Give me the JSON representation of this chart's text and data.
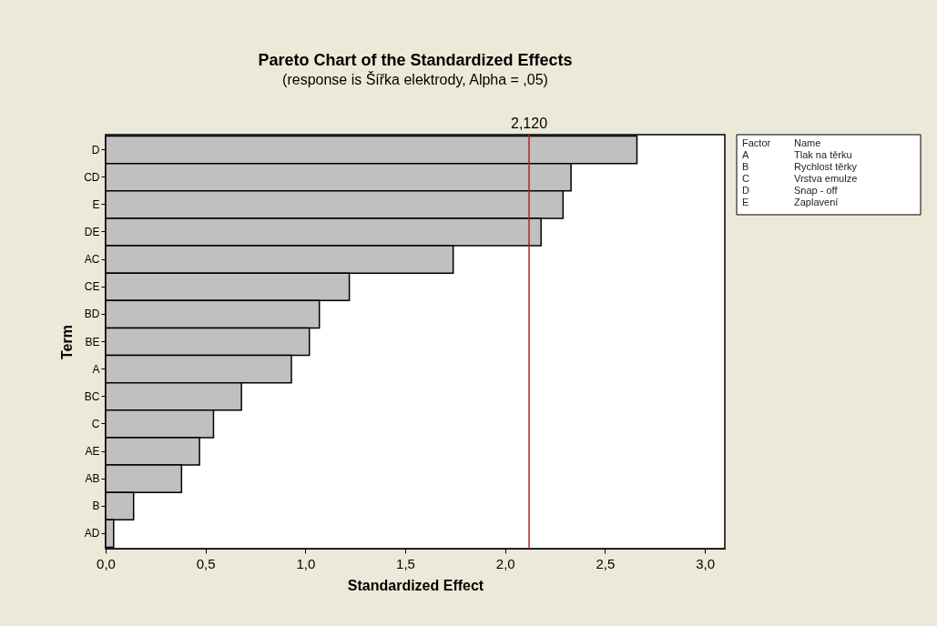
{
  "chart_data": {
    "type": "bar",
    "orientation": "horizontal",
    "title": "Pareto Chart of the Standardized Effects",
    "subtitle": "(response is Šířka elektrody, Alpha = ,05)",
    "xlabel": "Standardized Effect",
    "ylabel": "Term",
    "categories": [
      "D",
      "CD",
      "E",
      "DE",
      "AC",
      "CE",
      "BD",
      "BE",
      "A",
      "BC",
      "C",
      "AE",
      "AB",
      "B",
      "AD"
    ],
    "values": [
      2.66,
      2.33,
      2.29,
      2.18,
      1.74,
      1.22,
      1.07,
      1.02,
      0.93,
      0.68,
      0.54,
      0.47,
      0.38,
      0.14,
      0.04
    ],
    "color": "#c0c0c0",
    "xlim": [
      0,
      3.1
    ],
    "xticks": [
      {
        "value": 0,
        "label": "0,0"
      },
      {
        "value": 0.5,
        "label": "0,5"
      },
      {
        "value": 1,
        "label": "1,0"
      },
      {
        "value": 1.5,
        "label": "1,5"
      },
      {
        "value": 2,
        "label": "2,0"
      },
      {
        "value": 2.5,
        "label": "2,5"
      },
      {
        "value": 3,
        "label": "3,0"
      }
    ],
    "ref_lines": [
      {
        "axis": "x",
        "value": 2.12,
        "label": "2,120",
        "color": "#b22222"
      }
    ],
    "annotations": [
      "Factor",
      "Name",
      "A",
      "Tlak na těrku",
      "B",
      "Rychlost těrky",
      "C",
      "Vrstva emulze",
      "D",
      "Snap - off",
      "E",
      "Zaplavení"
    ],
    "grid": false
  }
}
